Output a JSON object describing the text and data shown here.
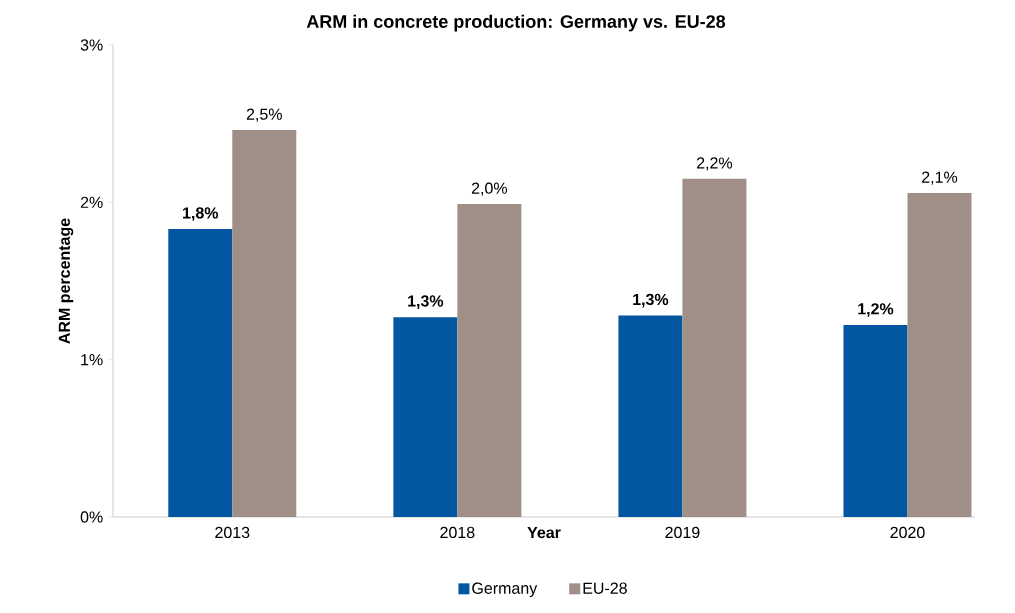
{
  "chart_data": {
    "type": "bar",
    "title": "ARM in concrete production: Germany vs. EU-28",
    "xlabel": "Year",
    "ylabel": "ARM percentage",
    "categories": [
      "2013",
      "2018",
      "2019",
      "2020"
    ],
    "series": [
      {
        "name": "Germany",
        "color": "#0357a0",
        "values": [
          1.83,
          1.27,
          1.28,
          1.22
        ],
        "value_labels": [
          "1,8%",
          "1,3%",
          "1,3%",
          "1,2%"
        ]
      },
      {
        "name": "EU-28",
        "color": "#a08f87",
        "values": [
          2.46,
          1.99,
          2.15,
          2.06
        ],
        "value_labels": [
          "2,5%",
          "2,0%",
          "2,2%",
          "2,1%"
        ]
      }
    ],
    "ylim": [
      0,
      3
    ],
    "yticks": [
      {
        "value": 0,
        "label": "0%"
      },
      {
        "value": 1,
        "label": "1%"
      },
      {
        "value": 2,
        "label": "2%"
      },
      {
        "value": 3,
        "label": "3%"
      }
    ],
    "grid": false,
    "legend": "bottom"
  }
}
